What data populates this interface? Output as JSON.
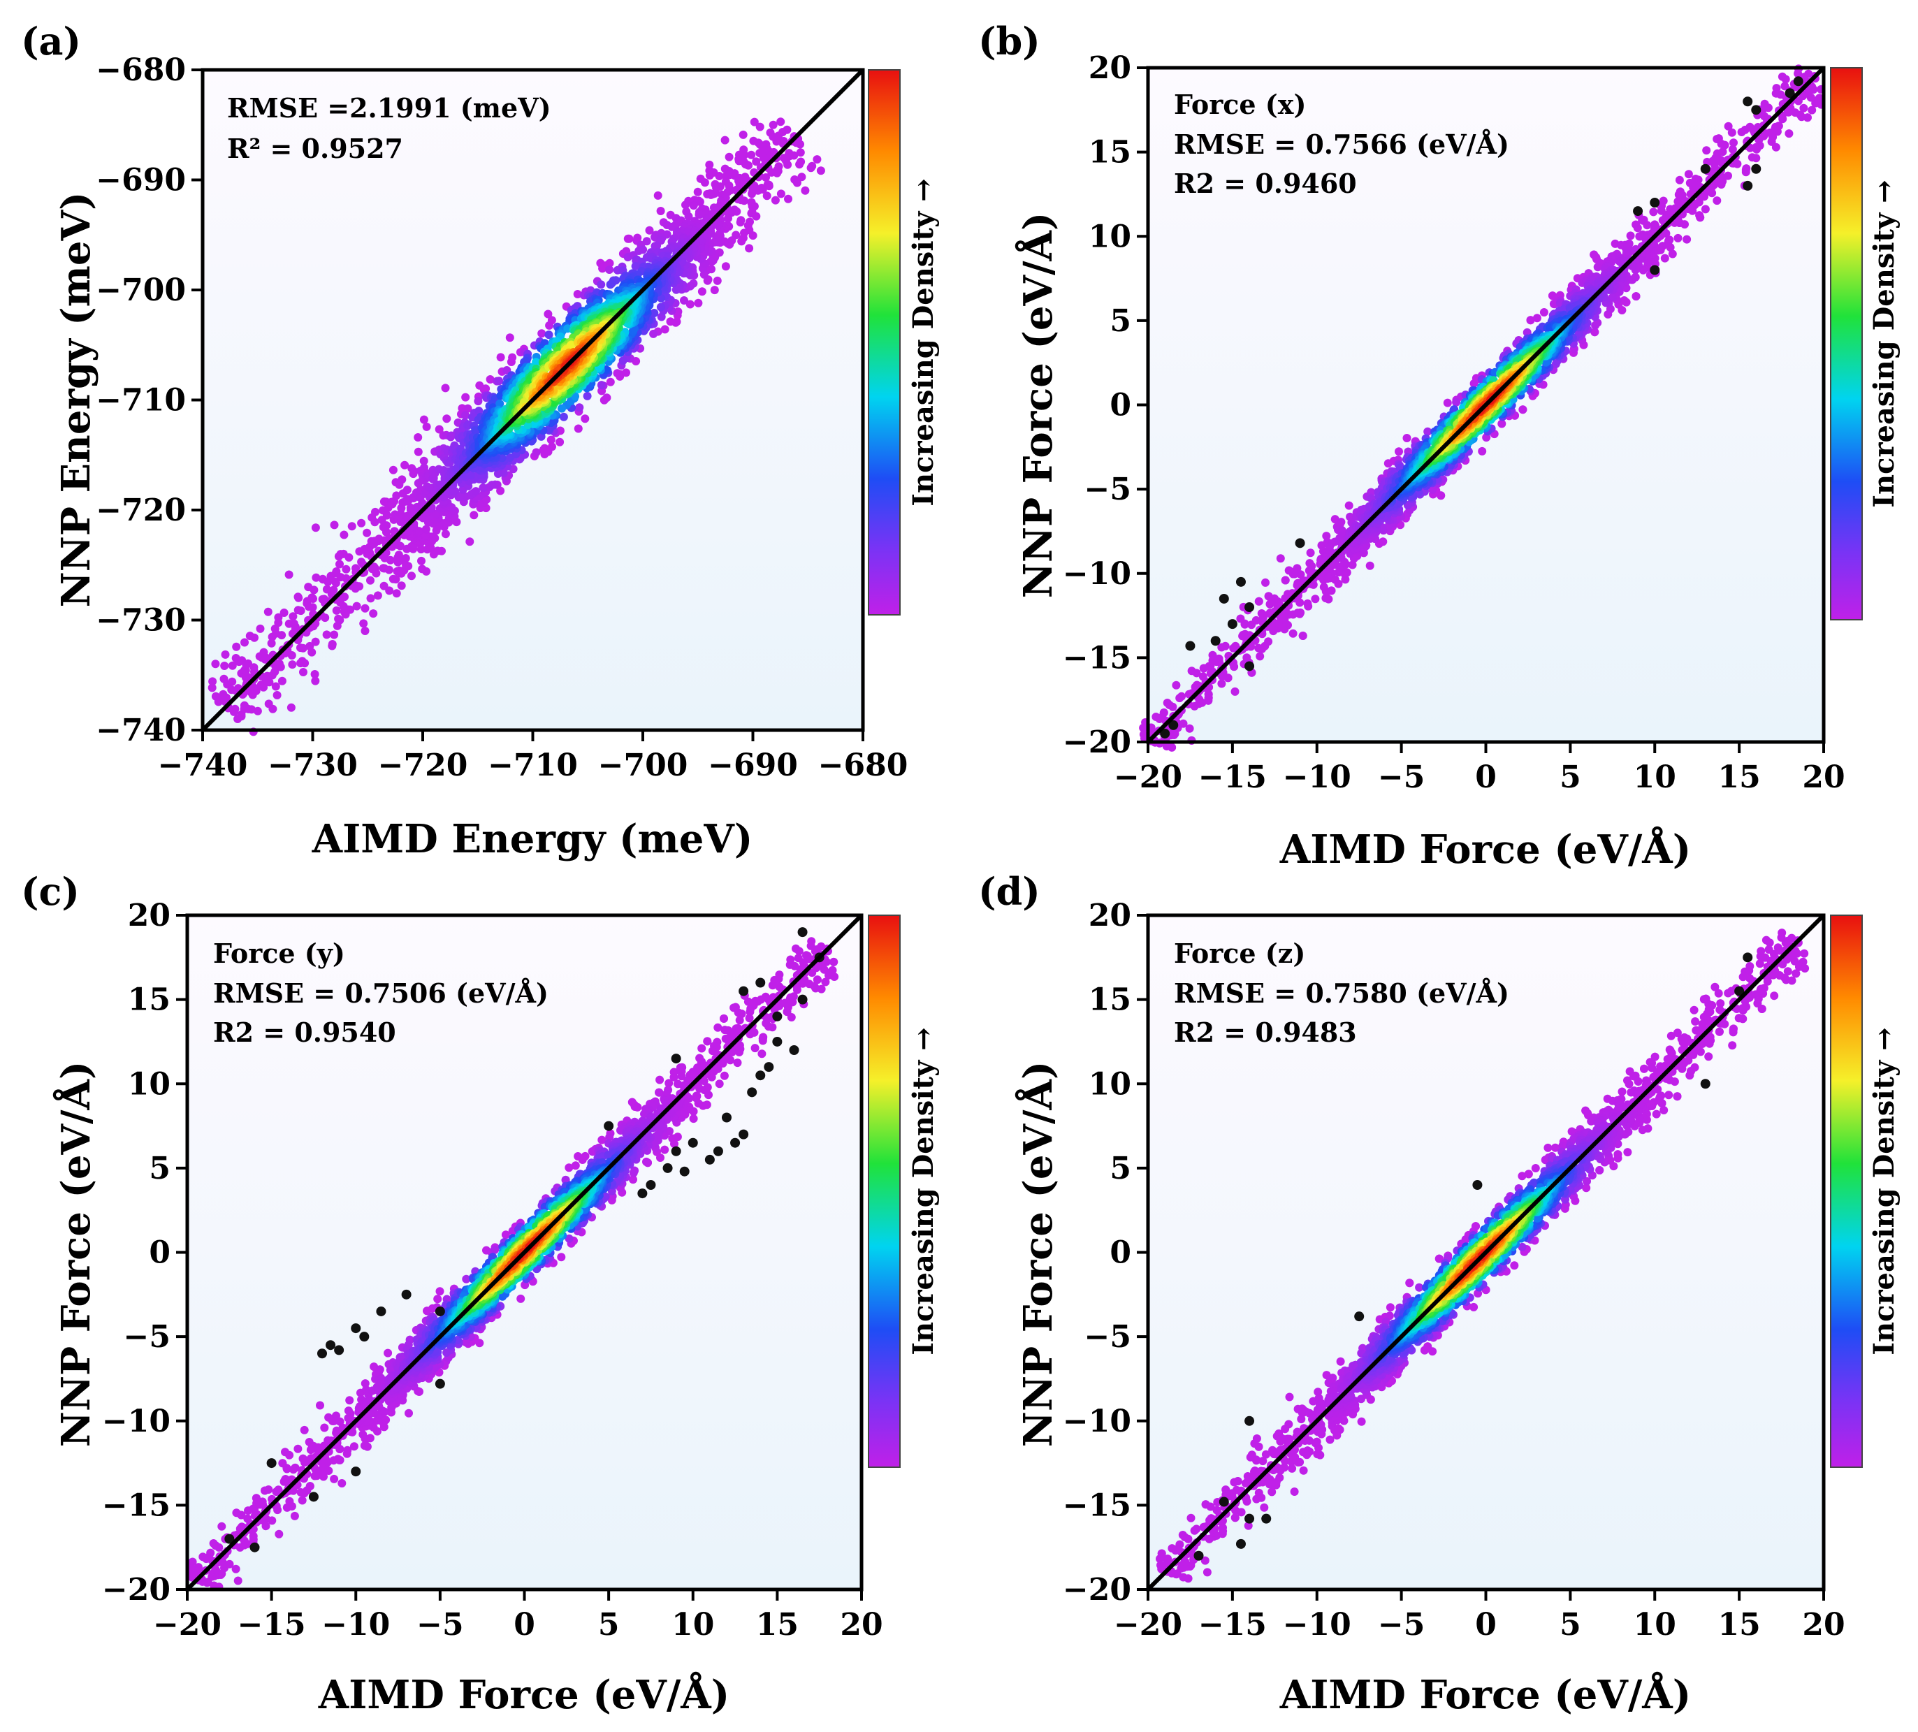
{
  "chart_data": [
    {
      "type": "scatter",
      "panel_label": "(a)",
      "xlabel": "AIMD Energy (meV)",
      "ylabel": "NNP  Energy (meV)",
      "xlim": [
        -740,
        -680
      ],
      "ylim": [
        -740,
        -680
      ],
      "xticks": [
        -740,
        -730,
        -720,
        -710,
        -700,
        -690,
        -680
      ],
      "yticks": [
        -740,
        -730,
        -720,
        -710,
        -700,
        -690,
        -680
      ],
      "stats": [
        "RMSE =2.1991 (meV)",
        "R² = 0.9527"
      ],
      "colorbar_label": "Increasing Density →",
      "fit_line": [
        [
          -740,
          -740
        ],
        [
          -680,
          -680
        ]
      ],
      "data_description": "points cluster along y=x between -738 and -686 meV; densest near -708 meV",
      "dense_center": -707,
      "extent": [
        -738,
        -686
      ],
      "scatter_width": 1.6,
      "outliers": []
    },
    {
      "type": "scatter",
      "panel_label": "(b)",
      "xlabel": "AIMD Force (eV/Å)",
      "ylabel": "NNP Force (eV/Å)",
      "xlim": [
        -20,
        20
      ],
      "ylim": [
        -20,
        20
      ],
      "xticks": [
        -20,
        -15,
        -10,
        -5,
        0,
        5,
        10,
        15,
        20
      ],
      "yticks": [
        -20,
        -15,
        -10,
        -5,
        0,
        5,
        10,
        15,
        20
      ],
      "stats": [
        "Force (x)",
        "RMSE = 0.7566 (eV/Å)",
        "R2 = 0.9460"
      ],
      "colorbar_label": "Increasing Density →",
      "fit_line": [
        [
          -20,
          -20
        ],
        [
          20,
          20
        ]
      ],
      "dense_center": 0,
      "extent": [
        -20,
        19.5
      ],
      "scatter_width": 0.9,
      "outliers": [
        [
          -18.5,
          -19
        ],
        [
          -17.5,
          -14.3
        ],
        [
          -16,
          -14
        ],
        [
          -15,
          -13
        ],
        [
          -14.5,
          -10.5
        ],
        [
          -14,
          -12
        ],
        [
          -15.5,
          -11.5
        ],
        [
          -14,
          -15.5
        ],
        [
          -11,
          -8.2
        ],
        [
          -19,
          -19.5
        ],
        [
          15.5,
          18
        ],
        [
          16,
          17.5
        ],
        [
          18.5,
          19.2
        ],
        [
          18,
          18.5
        ],
        [
          13,
          14
        ],
        [
          16,
          14
        ],
        [
          15.5,
          13
        ],
        [
          9,
          11.5
        ],
        [
          10,
          12
        ],
        [
          10,
          8
        ]
      ]
    },
    {
      "type": "scatter",
      "panel_label": "(c)",
      "xlabel": "AIMD Force (eV/Å)",
      "ylabel": "NNP Force (eV/Å)",
      "xlim": [
        -20,
        20
      ],
      "ylim": [
        -20,
        20
      ],
      "xticks": [
        -20,
        -15,
        -10,
        -5,
        0,
        5,
        10,
        15,
        20
      ],
      "yticks": [
        -20,
        -15,
        -10,
        -5,
        0,
        5,
        10,
        15,
        20
      ],
      "stats": [
        "Force (y)",
        "RMSE = 0.7506 (eV/Å)",
        "R2 = 0.9540"
      ],
      "colorbar_label": "Increasing Density →",
      "fit_line": [
        [
          -20,
          -20
        ],
        [
          20,
          20
        ]
      ],
      "dense_center": 0,
      "extent": [
        -19.5,
        18
      ],
      "scatter_width": 0.9,
      "outliers": [
        [
          -12,
          -6
        ],
        [
          -11.5,
          -5.5
        ],
        [
          -11,
          -5.8
        ],
        [
          -10,
          -4.5
        ],
        [
          -9.5,
          -5
        ],
        [
          -8.5,
          -3.5
        ],
        [
          -7,
          -2.5
        ],
        [
          -5,
          -3.5
        ],
        [
          -5,
          -7.8
        ],
        [
          -15,
          -12.5
        ],
        [
          -12.5,
          -14.5
        ],
        [
          -16,
          -17.5
        ],
        [
          -17.5,
          -17
        ],
        [
          -10,
          -13
        ],
        [
          5,
          7.5
        ],
        [
          7,
          3.5
        ],
        [
          7.5,
          4
        ],
        [
          8.5,
          5
        ],
        [
          9,
          6
        ],
        [
          9.5,
          4.8
        ],
        [
          10,
          6.5
        ],
        [
          11,
          5.5
        ],
        [
          11.5,
          6
        ],
        [
          12,
          8
        ],
        [
          12.5,
          6.5
        ],
        [
          13,
          7
        ],
        [
          13.5,
          9.5
        ],
        [
          14,
          10.5
        ],
        [
          14.5,
          11
        ],
        [
          15,
          12.5
        ],
        [
          16,
          12
        ],
        [
          16.5,
          15
        ],
        [
          15,
          14
        ],
        [
          14,
          16
        ],
        [
          13,
          15.5
        ],
        [
          16.5,
          19
        ],
        [
          17.5,
          17.5
        ],
        [
          9,
          11.5
        ]
      ]
    },
    {
      "type": "scatter",
      "panel_label": "(d)",
      "xlabel": "AIMD Force (eV/Å)",
      "ylabel": "NNP Force (eV/Å)",
      "xlim": [
        -20,
        20
      ],
      "ylim": [
        -20,
        20
      ],
      "xticks": [
        -20,
        -15,
        -10,
        -5,
        0,
        5,
        10,
        15,
        20
      ],
      "yticks": [
        -20,
        -15,
        -10,
        -5,
        0,
        5,
        10,
        15,
        20
      ],
      "stats": [
        "Force (z)",
        "RMSE = 0.7580 (eV/Å)",
        "R2 = 0.9483"
      ],
      "colorbar_label": "Increasing Density →",
      "fit_line": [
        [
          -20,
          -20
        ],
        [
          20,
          20
        ]
      ],
      "dense_center": -0.5,
      "extent": [
        -19,
        18.5
      ],
      "scatter_width": 0.9,
      "outliers": [
        [
          -17,
          -18
        ],
        [
          -15.5,
          -14.8
        ],
        [
          -14.5,
          -17.3
        ],
        [
          -14,
          -15.8
        ],
        [
          -13,
          -15.8
        ],
        [
          -14,
          -10
        ],
        [
          -7.5,
          -3.8
        ],
        [
          -0.5,
          4
        ],
        [
          13,
          10
        ],
        [
          15.5,
          17.5
        ],
        [
          15,
          15.5
        ]
      ]
    }
  ]
}
